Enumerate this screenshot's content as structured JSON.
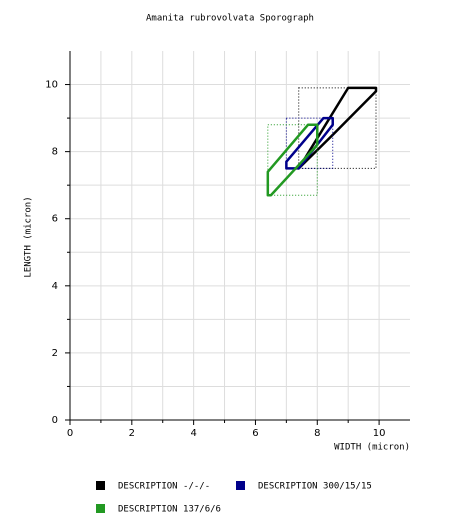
{
  "chart_data": {
    "type": "sporograph",
    "title": "Amanita rubrovolvata Sporograph",
    "x_label": "WIDTH (micron)",
    "y_label": "LENGTH (micron)",
    "xlim": [
      0,
      11
    ],
    "ylim": [
      0,
      11
    ],
    "xticks": [
      0,
      2,
      4,
      6,
      8,
      10
    ],
    "yticks": [
      0,
      2,
      4,
      6,
      8,
      10
    ],
    "x_minor": [
      1,
      3,
      5,
      7,
      9
    ],
    "y_minor": [
      1,
      3,
      5,
      7,
      9
    ],
    "grid": true,
    "series": [
      {
        "name": "DESCRIPTION -/-/-",
        "color": "#000000",
        "x": [
          7.4,
          9.0,
          9.9,
          9.9,
          8.5,
          7.4
        ],
        "y": [
          7.5,
          9.9,
          9.9,
          9.8,
          8.5,
          7.5
        ],
        "box": {
          "x": [
            7.4,
            9.9
          ],
          "y": [
            7.5,
            9.9
          ]
        }
      },
      {
        "name": "DESCRIPTION 300/15/15",
        "color": "#00008b",
        "x": [
          7.0,
          7.0,
          8.2,
          8.5,
          8.5,
          7.4
        ],
        "y": [
          7.5,
          7.7,
          9.0,
          9.0,
          8.8,
          7.5
        ],
        "box": {
          "x": [
            7.0,
            8.5
          ],
          "y": [
            7.5,
            9.0
          ]
        }
      },
      {
        "name": "DESCRIPTION 137/6/6",
        "color": "#229922",
        "x": [
          6.4,
          6.4,
          7.7,
          8.0,
          8.0,
          6.5
        ],
        "y": [
          6.7,
          7.4,
          8.8,
          8.8,
          8.2,
          6.7
        ],
        "box": {
          "x": [
            6.4,
            8.0
          ],
          "y": [
            6.7,
            8.8
          ]
        }
      }
    ]
  }
}
